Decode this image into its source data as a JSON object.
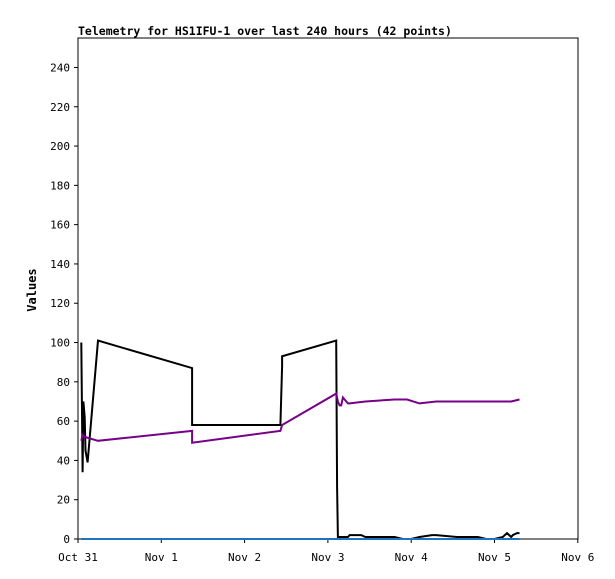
{
  "chart_data": {
    "type": "line",
    "title": "Telemetry for HS1IFU-1 over last 240 hours (42 points)",
    "xlabel": "",
    "ylabel": "Values",
    "xlim": [
      "Oct 31",
      "Nov 6"
    ],
    "ylim": [
      0,
      255
    ],
    "grid": false,
    "legend": "none",
    "x_ticks": [
      "Oct 31",
      "Nov 1",
      "Nov 2",
      "Nov 3",
      "Nov 4",
      "Nov 5",
      "Nov 6"
    ],
    "y_ticks": [
      0,
      20,
      40,
      60,
      80,
      100,
      120,
      140,
      160,
      180,
      200,
      220,
      240
    ],
    "x_unit": "days since Oct 31 00:00",
    "series": [
      {
        "color": "#000000",
        "x": [
          0.04,
          0.055,
          0.065,
          0.08,
          0.09,
          0.115,
          0.24,
          1.37,
          1.37,
          2.43,
          2.45,
          2.45,
          3.1,
          3.11,
          3.12,
          3.24,
          3.26,
          3.4,
          3.45,
          3.8,
          3.9,
          4.0,
          4.1,
          4.25,
          4.3,
          4.55,
          4.8,
          4.9,
          5.0,
          5.1,
          5.15,
          5.2,
          5.22,
          5.27,
          5.3
        ],
        "y": [
          100,
          34,
          70,
          62,
          45,
          39,
          101,
          87,
          58,
          58,
          88,
          93,
          101,
          26,
          1,
          1,
          2,
          2,
          1,
          1,
          0,
          0,
          1,
          2,
          2,
          1,
          1,
          0,
          0,
          1,
          3,
          1,
          2,
          3,
          3
        ]
      },
      {
        "color": "#770088",
        "x": [
          0.04,
          0.055,
          0.08,
          0.24,
          1.37,
          1.37,
          2.43,
          2.45,
          3.1,
          3.12,
          3.14,
          3.16,
          3.18,
          3.2,
          3.24,
          3.26,
          3.45,
          3.8,
          3.95,
          4.1,
          4.3,
          4.8,
          5.0,
          5.1,
          5.2,
          5.3
        ],
        "y": [
          50,
          53,
          52,
          50,
          55,
          49,
          55,
          58,
          74,
          70,
          68,
          68,
          72,
          71,
          69,
          69,
          70,
          71,
          71,
          69,
          70,
          70,
          70,
          70,
          70,
          71
        ]
      },
      {
        "color": "#1e73be",
        "x": [
          0.04,
          5.3
        ],
        "y": [
          0,
          0
        ]
      }
    ]
  }
}
